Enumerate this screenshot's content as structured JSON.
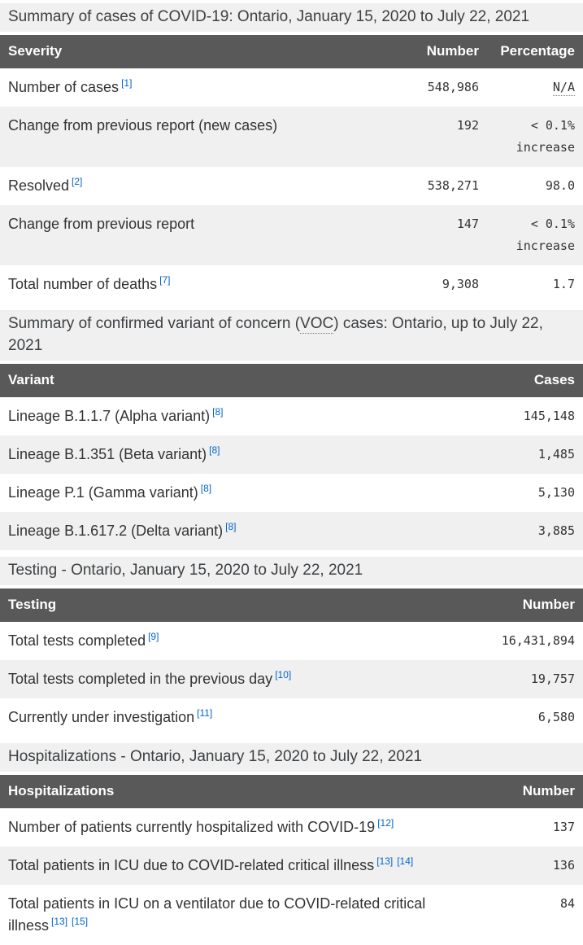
{
  "colors": {
    "header_bg": "#595959",
    "header_text": "#ffffff",
    "stripe": "#f0f0f0",
    "caption_bg": "#f0f0f0",
    "link": "#0066cc",
    "text": "#333333"
  },
  "tables": [
    {
      "id": "cases-summary",
      "caption_parts": [
        {
          "text": "Summary of cases of COVID-19: Ontario, January 15, 2020 to July 22, 2021"
        }
      ],
      "columns": [
        "Severity",
        "Number",
        "Percentage"
      ],
      "rows": [
        {
          "label": "Number of cases",
          "footnotes": [
            "[1]"
          ],
          "number": "548,986",
          "percentage": "N/A",
          "percentage_is_abbr": true
        },
        {
          "label": "Change from previous report (new cases)",
          "footnotes": [],
          "number": "192",
          "percentage": "< 0.1% increase"
        },
        {
          "label": "Resolved",
          "footnotes": [
            "[2]"
          ],
          "number": "538,271",
          "percentage": "98.0"
        },
        {
          "label": "Change from previous report",
          "footnotes": [],
          "number": "147",
          "percentage": "< 0.1% increase"
        },
        {
          "label": "Total number of deaths",
          "footnotes": [
            "[7]"
          ],
          "number": "9,308",
          "percentage": "1.7"
        }
      ]
    },
    {
      "id": "variants-summary",
      "caption_parts": [
        {
          "text": "Summary of confirmed variant of concern ("
        },
        {
          "abbr": "VOC"
        },
        {
          "text": ") cases: Ontario, up to July 22, 2021"
        }
      ],
      "columns": [
        "Variant",
        "Cases"
      ],
      "rows": [
        {
          "label": "Lineage B.1.1.7 (Alpha variant)",
          "footnotes": [
            "[8]"
          ],
          "number": "145,148"
        },
        {
          "label": "Lineage B.1.351 (Beta variant)",
          "footnotes": [
            "[8]"
          ],
          "number": "1,485"
        },
        {
          "label": "Lineage P.1 (Gamma variant)",
          "footnotes": [
            "[8]"
          ],
          "number": "5,130"
        },
        {
          "label": "Lineage B.1.617.2 (Delta variant)",
          "footnotes": [
            "[8]"
          ],
          "number": "3,885"
        }
      ]
    },
    {
      "id": "testing",
      "caption_parts": [
        {
          "text": "Testing - Ontario, January 15, 2020 to July 22, 2021"
        }
      ],
      "columns": [
        "Testing",
        "Number"
      ],
      "rows": [
        {
          "label": "Total tests completed",
          "footnotes": [
            "[9]"
          ],
          "number": "16,431,894"
        },
        {
          "label": "Total tests completed in the previous day",
          "footnotes": [
            "[10]"
          ],
          "number": "19,757"
        },
        {
          "label": "Currently under investigation",
          "footnotes": [
            "[11]"
          ],
          "number": "6,580"
        }
      ]
    },
    {
      "id": "hospitalizations",
      "caption_parts": [
        {
          "text": "Hospitalizations - Ontario, January 15, 2020 to July 22, 2021"
        }
      ],
      "columns": [
        "Hospitalizations",
        "Number"
      ],
      "rows": [
        {
          "label": "Number of patients currently hospitalized with COVID-19",
          "footnotes": [
            "[12]"
          ],
          "number": "137"
        },
        {
          "label": "Total patients in ICU due to COVID-related critical illness",
          "footnotes": [
            "[13]",
            "[14]"
          ],
          "number": "136"
        },
        {
          "label": "Total patients in ICU on a ventilator due to COVID-related critical illness",
          "footnotes": [
            "[13]",
            "[15]"
          ],
          "number": "84"
        }
      ]
    }
  ]
}
